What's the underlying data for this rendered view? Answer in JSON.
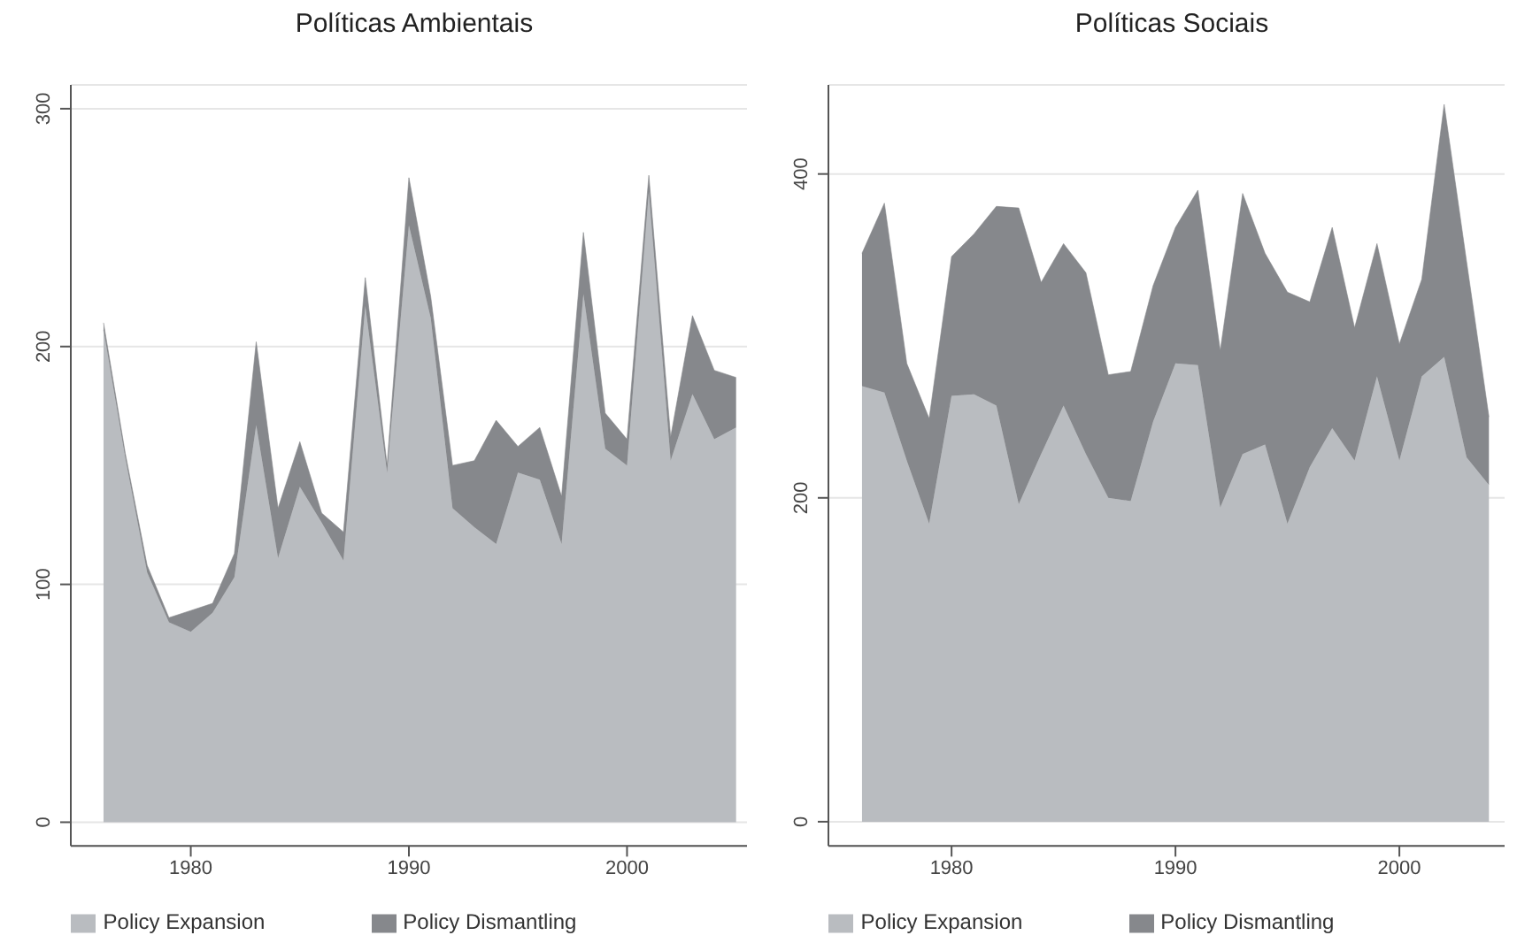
{
  "chart_data": [
    {
      "type": "area",
      "title": "Políticas Ambientais",
      "stacked": true,
      "x": [
        1976,
        1977,
        1978,
        1979,
        1980,
        1981,
        1982,
        1983,
        1984,
        1985,
        1986,
        1987,
        1988,
        1989,
        1990,
        1991,
        1992,
        1993,
        1994,
        1995,
        1996,
        1997,
        1998,
        1999,
        2000,
        2001,
        2002,
        2003,
        2004,
        2005
      ],
      "series": [
        {
          "name": "Policy Expansion",
          "color": "#b9bcc0",
          "values": [
            207,
            153,
            105,
            84,
            80,
            88,
            103,
            167,
            111,
            141,
            126,
            110,
            217,
            147,
            251,
            212,
            132,
            124,
            117,
            147,
            144,
            117,
            222,
            157,
            150,
            265,
            152,
            180,
            161,
            166
          ]
        },
        {
          "name": "Policy Dismantling",
          "color": "#86888c",
          "values": [
            3,
            2,
            3,
            2,
            9,
            4,
            10,
            35,
            21,
            19,
            4,
            12,
            12,
            3,
            20,
            9,
            18,
            28,
            52,
            11,
            22,
            20,
            26,
            15,
            11,
            7,
            10,
            33,
            29,
            21
          ]
        }
      ],
      "xlim": [
        1974.5,
        2005.5
      ],
      "xticks": [
        1980,
        1990,
        2000
      ],
      "ylim": [
        -10,
        310
      ],
      "yticks": [
        0,
        100,
        200,
        300
      ],
      "grid": "y",
      "legend": "bottom"
    },
    {
      "type": "area",
      "title": "Políticas Sociais",
      "stacked": true,
      "x": [
        1976,
        1977,
        1978,
        1979,
        1980,
        1981,
        1982,
        1983,
        1984,
        1985,
        1986,
        1987,
        1988,
        1989,
        1990,
        1991,
        1992,
        1993,
        1994,
        1995,
        1996,
        1997,
        1998,
        1999,
        2000,
        2001,
        2002,
        2003,
        2004
      ],
      "series": [
        {
          "name": "Policy Expansion",
          "color": "#b9bcc0",
          "values": [
            269,
            265,
            223,
            184,
            263,
            264,
            257,
            196,
            227,
            257,
            227,
            200,
            198,
            247,
            283,
            282,
            194,
            227,
            233,
            184,
            219,
            243,
            223,
            275,
            223,
            275,
            287,
            225,
            208
          ]
        },
        {
          "name": "Policy Dismantling",
          "color": "#86888c",
          "values": [
            82,
            117,
            60,
            65,
            86,
            99,
            123,
            183,
            106,
            100,
            112,
            76,
            80,
            84,
            84,
            108,
            97,
            161,
            118,
            143,
            102,
            124,
            82,
            82,
            72,
            60,
            156,
            121,
            42
          ]
        }
      ],
      "xlim": [
        1974.5,
        2004.7
      ],
      "xticks": [
        1980,
        1990,
        2000
      ],
      "ylim": [
        -15,
        455
      ],
      "yticks": [
        0,
        200,
        400
      ],
      "grid": "y",
      "legend": "bottom"
    }
  ]
}
